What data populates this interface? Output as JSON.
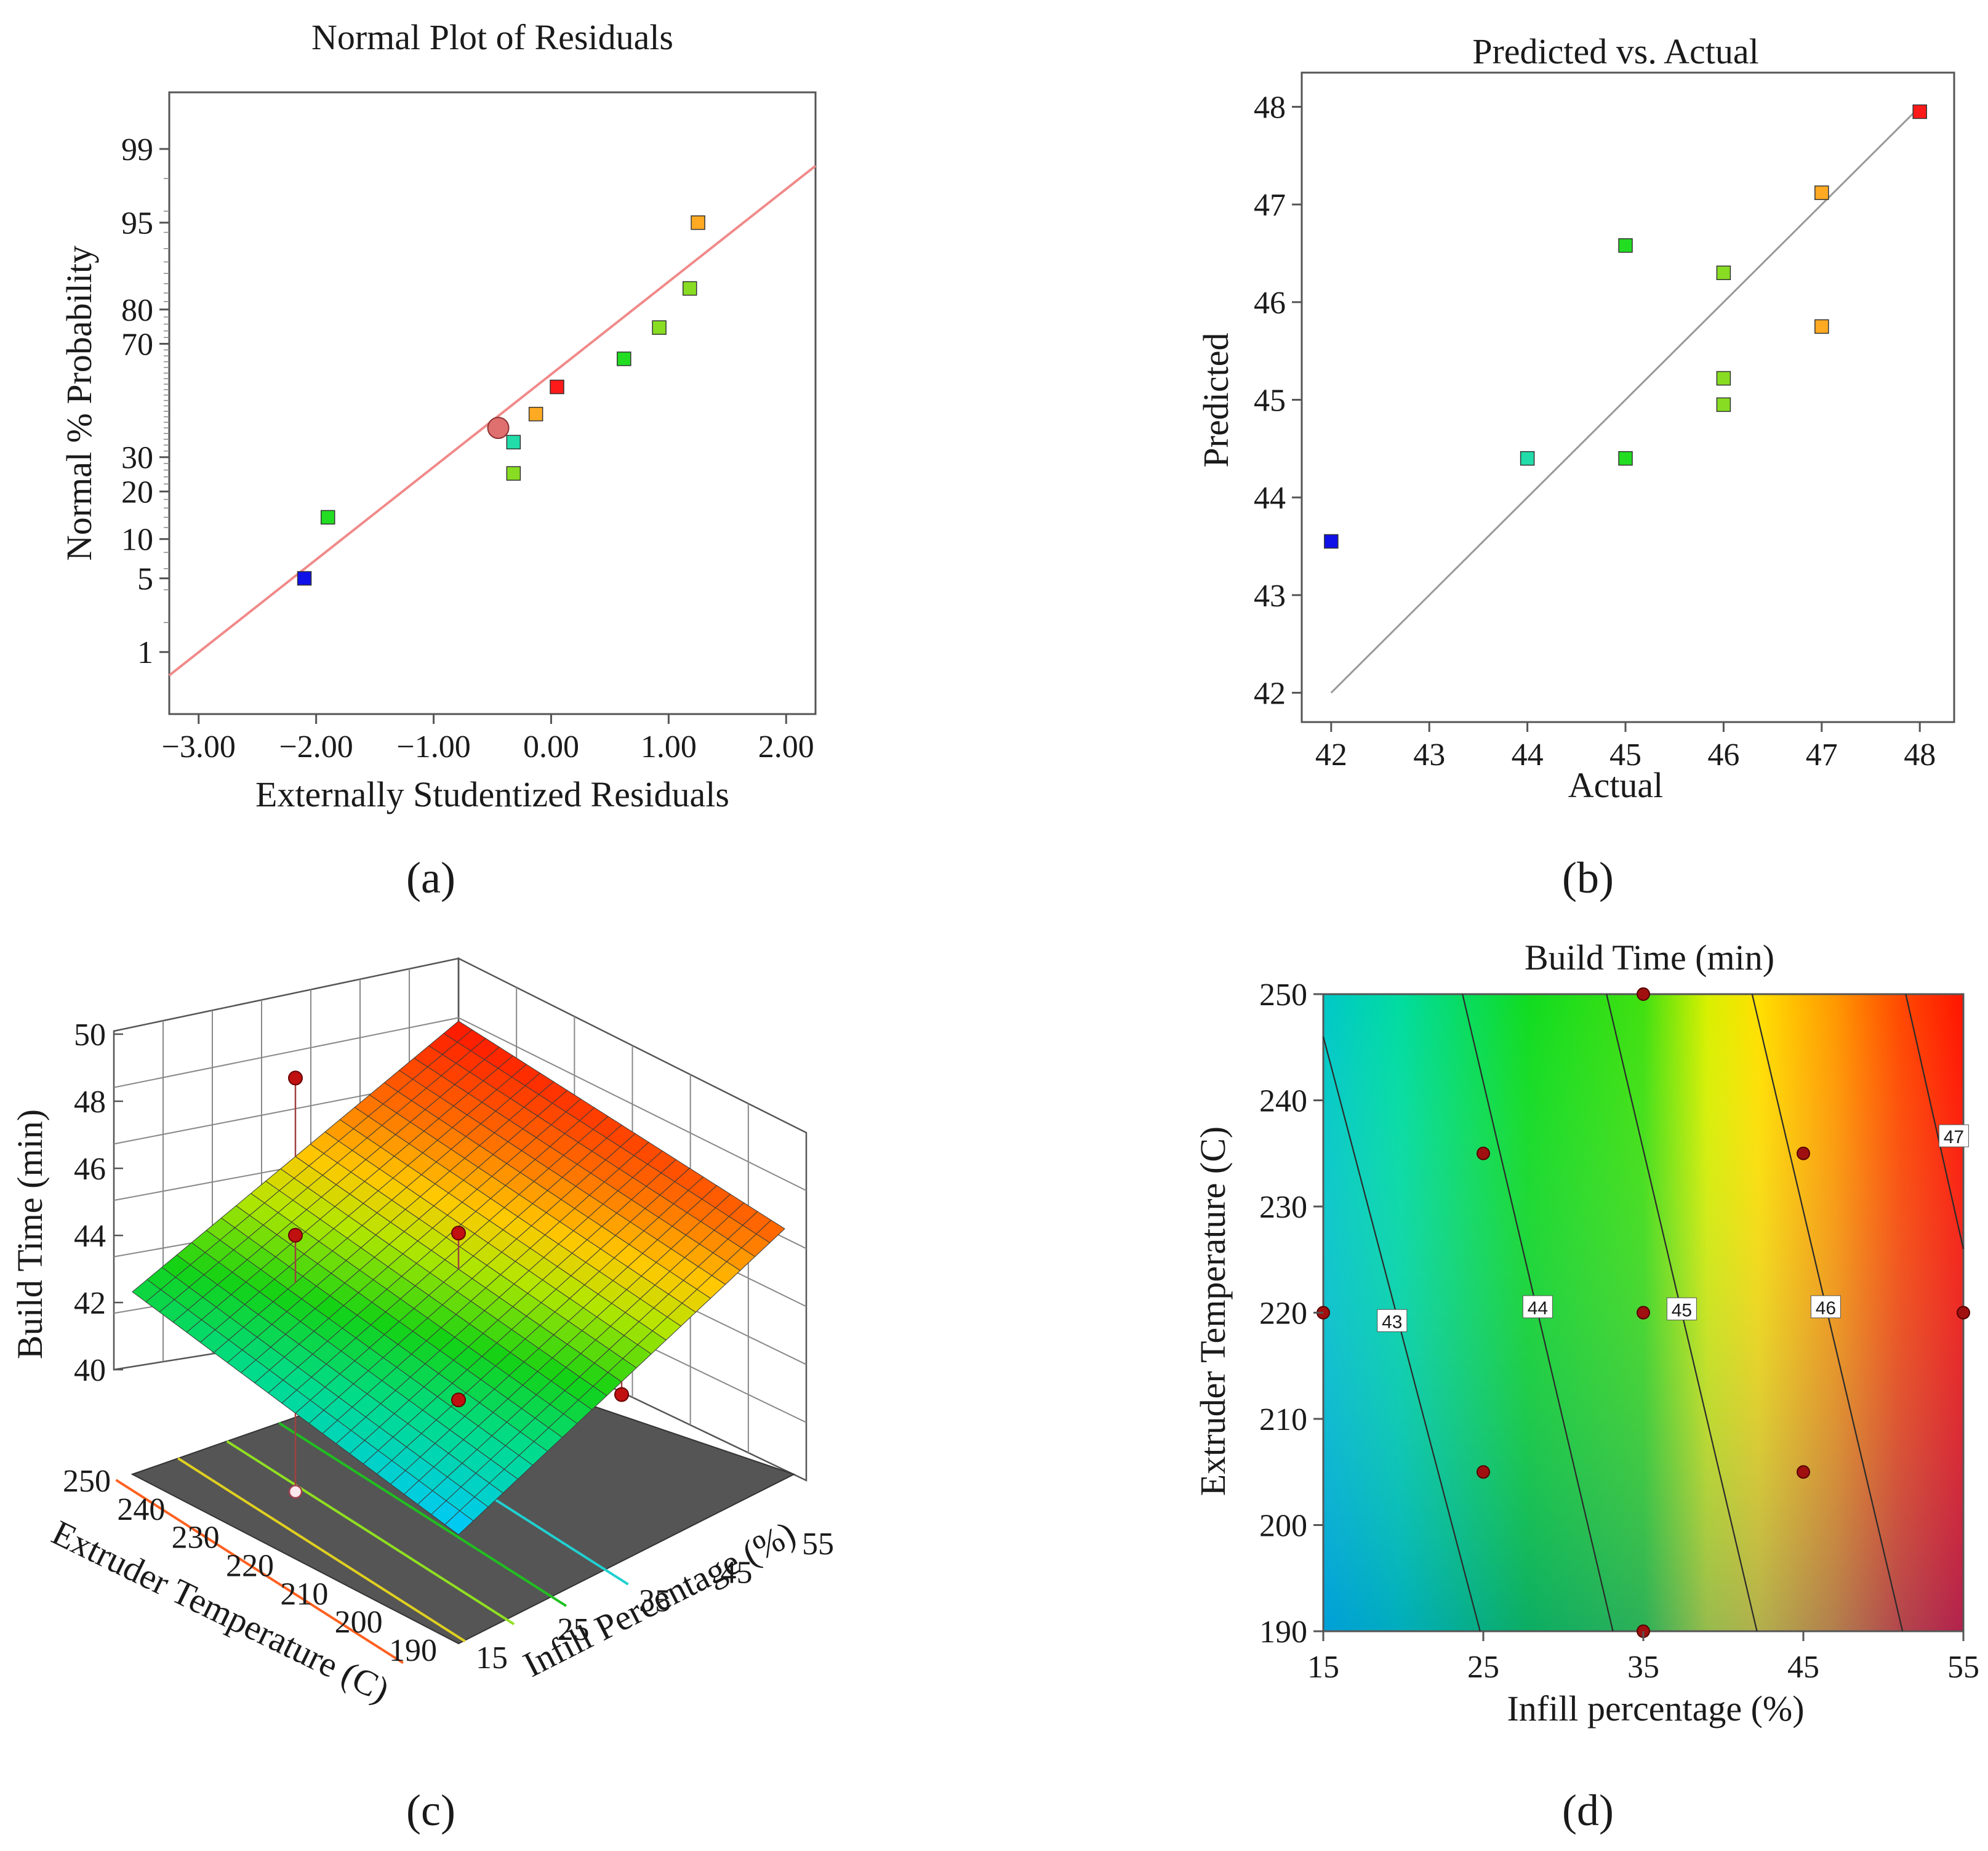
{
  "panels": [
    {
      "id": "a",
      "label": "(a)"
    },
    {
      "id": "b",
      "label": "(b)"
    },
    {
      "id": "c",
      "label": "(c)"
    },
    {
      "id": "d",
      "label": "(d)"
    }
  ],
  "chart_data": [
    {
      "panel": "a",
      "type": "scatter",
      "title": "Normal Plot of Residuals",
      "xlabel": "Externally Studentized Residuals",
      "ylabel": "Normal % Probability",
      "xlim": [
        -3.25,
        2.25
      ],
      "x_ticks": [
        "-3.00",
        "-2.00",
        "-1.00",
        "0.00",
        "1.00",
        "2.00"
      ],
      "y_ticks": [
        "1",
        "5",
        "10",
        "20",
        "30",
        "70",
        "80",
        "95",
        "99"
      ],
      "y_scale": "normal probability",
      "reference_line": {
        "color": "#f08a8a",
        "from": [
          -3.25,
          0.55
        ],
        "to": [
          2.25,
          98.5
        ]
      },
      "points": [
        {
          "x": -2.1,
          "y": 5,
          "color": "#1010e8"
        },
        {
          "x": -1.9,
          "y": 14,
          "color": "#22dd22"
        },
        {
          "x": -0.32,
          "y": 25,
          "color": "#88dd22"
        },
        {
          "x": -0.32,
          "y": 35,
          "color": "#22ddaa"
        },
        {
          "x": -0.45,
          "y": 40,
          "color": "#e07070",
          "highlight": true
        },
        {
          "x": -0.13,
          "y": 45,
          "color": "#ffaa22"
        },
        {
          "x": 0.05,
          "y": 55,
          "color": "#ff1a1a"
        },
        {
          "x": 0.62,
          "y": 65,
          "color": "#22dd22"
        },
        {
          "x": 0.92,
          "y": 75,
          "color": "#88dd22"
        },
        {
          "x": 1.18,
          "y": 85,
          "color": "#88dd22"
        },
        {
          "x": 1.25,
          "y": 95,
          "color": "#ffaa22"
        }
      ]
    },
    {
      "panel": "b",
      "type": "scatter",
      "title": "Predicted vs. Actual",
      "xlabel": "Actual",
      "ylabel": "Predicted",
      "xlim": [
        41.7,
        48.35
      ],
      "ylim": [
        41.7,
        48.35
      ],
      "x_ticks": [
        "42",
        "43",
        "44",
        "45",
        "46",
        "47",
        "48"
      ],
      "y_ticks": [
        "42",
        "43",
        "44",
        "45",
        "46",
        "47",
        "48"
      ],
      "reference_line": {
        "color": "#999999",
        "from": [
          42,
          42
        ],
        "to": [
          48,
          48
        ]
      },
      "points": [
        {
          "x": 42,
          "y": 43.55,
          "color": "#1010e8"
        },
        {
          "x": 44,
          "y": 44.4,
          "color": "#22ddaa"
        },
        {
          "x": 45,
          "y": 44.4,
          "color": "#22dd22"
        },
        {
          "x": 45,
          "y": 46.58,
          "color": "#22dd22"
        },
        {
          "x": 46,
          "y": 44.95,
          "color": "#88dd22"
        },
        {
          "x": 46,
          "y": 45.22,
          "color": "#88dd22"
        },
        {
          "x": 46,
          "y": 46.3,
          "color": "#88dd22"
        },
        {
          "x": 47,
          "y": 45.75,
          "color": "#ffaa22"
        },
        {
          "x": 47,
          "y": 47.12,
          "color": "#ffaa22"
        },
        {
          "x": 48,
          "y": 47.95,
          "color": "#ff1a1a"
        }
      ]
    },
    {
      "panel": "c",
      "type": "surface3d",
      "zlabel": "Build Time (min)",
      "xlabel": "Extruder Temperature (C)",
      "ylabel": "Infill Percentage (%)",
      "x_ticks": [
        "250",
        "240",
        "230",
        "220",
        "210",
        "200",
        "190"
      ],
      "y_ticks": [
        "15",
        "25",
        "35",
        "45",
        "55"
      ],
      "z_ticks": [
        "40",
        "42",
        "44",
        "46",
        "48",
        "50"
      ],
      "zlim": [
        40,
        50
      ],
      "surface_corners": [
        {
          "temp": 250,
          "infill": 15,
          "z": 43.9
        },
        {
          "temp": 190,
          "infill": 15,
          "z": 41.6
        },
        {
          "temp": 190,
          "infill": 55,
          "z": 47.6
        },
        {
          "temp": 250,
          "infill": 55,
          "z": 48.8
        }
      ],
      "design_points": [
        {
          "temp": 220,
          "infill": 15,
          "z": 40.3,
          "below": true
        },
        {
          "temp": 235,
          "infill": 25,
          "z": 46.1
        },
        {
          "temp": 205,
          "infill": 25,
          "z": 43.6
        },
        {
          "temp": 220,
          "infill": 35,
          "z": 46.6
        },
        {
          "temp": 190,
          "infill": 35,
          "z": 44.2
        },
        {
          "temp": 250,
          "infill": 35,
          "z": 48.8
        }
      ]
    },
    {
      "panel": "d",
      "type": "contour",
      "title": "Build Time (min)",
      "xlabel": "Infill percentage (%)",
      "ylabel": "Extruder Temperature (C)",
      "xlim": [
        15,
        55
      ],
      "ylim": [
        190,
        250
      ],
      "x_ticks": [
        "15",
        "25",
        "35",
        "45",
        "55"
      ],
      "y_ticks": [
        "190",
        "200",
        "210",
        "220",
        "230",
        "240",
        "250"
      ],
      "contour_labels": [
        {
          "value": "43",
          "x": 19.3,
          "y": 219.2
        },
        {
          "value": "44",
          "x": 28.4,
          "y": 220.5
        },
        {
          "value": "45",
          "x": 37.4,
          "y": 220.3
        },
        {
          "value": "46",
          "x": 46.4,
          "y": 220.5
        },
        {
          "value": "47",
          "x": 54.4,
          "y": 236.6
        }
      ],
      "contour_lines": [
        {
          "value": "43",
          "from": [
            15,
            246
          ],
          "to": [
            24.8,
            190
          ]
        },
        {
          "value": "44",
          "from": [
            23.7,
            250
          ],
          "to": [
            33.1,
            190
          ]
        },
        {
          "value": "45",
          "from": [
            32.7,
            250
          ],
          "to": [
            42.1,
            190
          ]
        },
        {
          "value": "46",
          "from": [
            41.8,
            250
          ],
          "to": [
            51.2,
            190
          ]
        },
        {
          "value": "47",
          "from": [
            51.4,
            250
          ],
          "to": [
            55,
            226
          ]
        }
      ],
      "design_points": [
        {
          "x": 15,
          "y": 220
        },
        {
          "x": 25,
          "y": 235
        },
        {
          "x": 25,
          "y": 205
        },
        {
          "x": 35,
          "y": 250
        },
        {
          "x": 35,
          "y": 220
        },
        {
          "x": 35,
          "y": 190
        },
        {
          "x": 45,
          "y": 235
        },
        {
          "x": 45,
          "y": 205
        },
        {
          "x": 55,
          "y": 220
        }
      ]
    }
  ]
}
